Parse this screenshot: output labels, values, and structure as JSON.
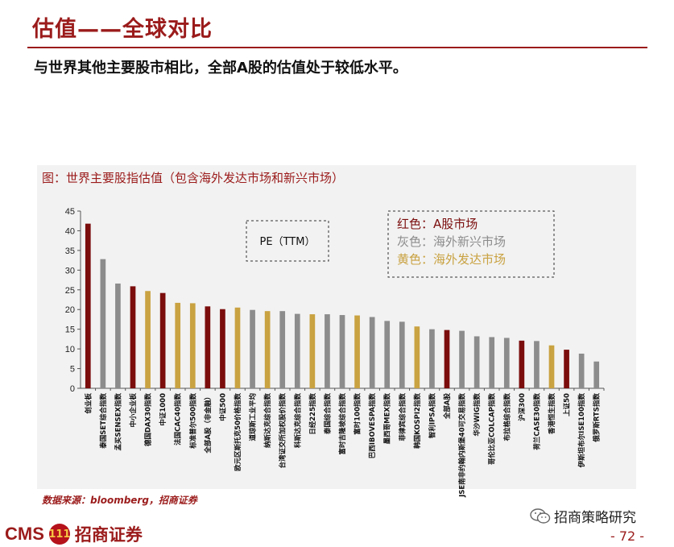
{
  "header": {
    "title": "估值——全球对比",
    "subtitle": "与世界其他主要股市相比，全部A股的估值处于较低水平。"
  },
  "chart_data": {
    "type": "bar",
    "title": "图：世界主要股指估值（包含海外发达市场和新兴市场）",
    "metric_label": "PE（TTM）",
    "ylim": [
      0,
      45
    ],
    "yticks": [
      0,
      5,
      10,
      15,
      20,
      25,
      30,
      35,
      40,
      45
    ],
    "legend": [
      {
        "text": "红色：A股市场",
        "color": "#7b0d0d"
      },
      {
        "text": "灰色：海外新兴市场",
        "color": "#8c8c8c"
      },
      {
        "text": "黄色：海外发达市场",
        "color": "#c9a241"
      }
    ],
    "categories": [
      "创业板",
      "泰国SET综合指数",
      "孟买SENSEX指数",
      "中小企业板",
      "德国DAX30指数",
      "中证1000",
      "法国CAC40指数",
      "标准普尔500指数",
      "全部A股（非金融）",
      "中证500",
      "欧元区斯托克50价格指数",
      "道琼斯工业平均",
      "纳斯达克综合指数",
      "台湾证交所加权股价指数",
      "科斯达克综合指数",
      "日经225指数",
      "泰国综合指数",
      "富时吉隆坡综合指数",
      "富时100指数",
      "巴西IBOVESPA指数",
      "墨西哥MEX指数",
      "菲律宾综合指数",
      "韩国KOSPI2指数",
      "智利IPSA指数",
      "全部A股",
      "JSE南非约翰内斯堡40可交易指数",
      "华沙WIG指数",
      "哥伦比亚COLCAP指数",
      "布拉格综合指数",
      "沪深300",
      "荷兰CASE30指数",
      "香港恒生指数",
      "上证50",
      "伊斯坦布尔ISE100指数",
      "俄罗斯RTS指数"
    ],
    "values": [
      41.8,
      32.8,
      26.6,
      25.9,
      24.7,
      24.2,
      21.7,
      21.6,
      20.8,
      20.1,
      20.5,
      19.9,
      19.6,
      19.6,
      18.9,
      18.8,
      18.8,
      18.6,
      18.5,
      18.1,
      17.1,
      16.9,
      15.7,
      15.0,
      14.8,
      14.6,
      13.2,
      13.0,
      12.8,
      12.1,
      12.0,
      10.9,
      9.8,
      8.8,
      6.8
    ],
    "groups": [
      "A",
      "EM",
      "EM",
      "A",
      "DM",
      "A",
      "DM",
      "DM",
      "A",
      "A",
      "DM",
      "EM",
      "DM",
      "EM",
      "EM",
      "DM",
      "EM",
      "EM",
      "DM",
      "EM",
      "EM",
      "EM",
      "DM",
      "EM",
      "A",
      "EM",
      "EM",
      "EM",
      "EM",
      "A",
      "EM",
      "DM",
      "A",
      "EM",
      "EM"
    ],
    "group_colors": {
      "A": "#7b0d0d",
      "EM": "#8c8c8c",
      "DM": "#c9a241"
    }
  },
  "footer": {
    "source": "数据来源：bloomberg，招商证券",
    "logo_cms": "CMS",
    "logo_mark": "111",
    "logo_cn": "招商证券",
    "wechat_name": "招商策略研究",
    "page": "- 72 -"
  }
}
